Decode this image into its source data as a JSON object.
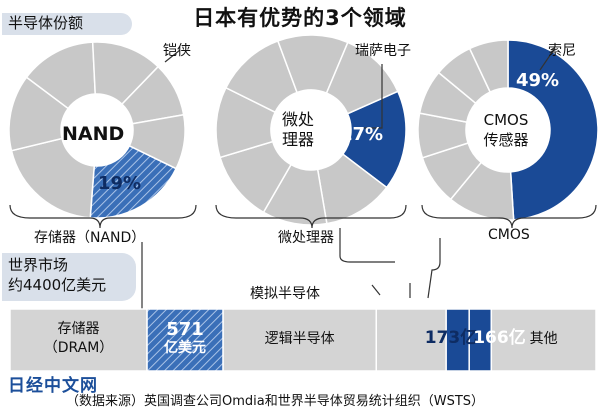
{
  "title": "日本有优势的3个领域",
  "share_tag": "半导体份额",
  "market_tag_line1": "世界市场",
  "market_tag_line2": "约4400亿美元",
  "colors": {
    "japan": "#1a4a96",
    "gray": "#c8c8c8",
    "slice_border": "#ffffff",
    "bar_bg": "#d4d4d4"
  },
  "chart_data": [
    {
      "type": "pie",
      "center_label": "NAND",
      "company": "铠侠",
      "value_label": "19%",
      "category_label": "存储器（NAND）",
      "japan_share": 19,
      "japan_style": "hatched",
      "slices": [
        19,
        20,
        14,
        14,
        13,
        10,
        10
      ]
    },
    {
      "type": "pie",
      "center_label_line1": "微处",
      "center_label_line2": "理器",
      "company": "瑞萨电子",
      "value_label": "17%",
      "category_label": "微处理器",
      "japan_share": 17,
      "japan_style": "solid",
      "slices": [
        17,
        12,
        11,
        12,
        12,
        12,
        12,
        12
      ]
    },
    {
      "type": "pie",
      "center_label_line1": "CMOS",
      "center_label_line2": "传感器",
      "company": "索尼",
      "value_label": "49%",
      "category_label": "CMOS",
      "japan_share": 49,
      "japan_style": "solid",
      "slices": [
        49,
        12,
        9,
        8,
        8,
        7,
        7
      ]
    },
    {
      "type": "bar",
      "subtype": "stacked-horizontal",
      "segments": [
        {
          "label_line1": "存储器",
          "label_line2": "（DRAM）",
          "value": 1029,
          "style": "gray"
        },
        {
          "label_line1": "571",
          "label_line2": "亿美元",
          "value": 571,
          "style": "hatched"
        },
        {
          "label": "逻辑半导体",
          "value": 1150,
          "style": "gray"
        },
        {
          "label": "",
          "value": 525,
          "style": "gray"
        },
        {
          "label": "173亿",
          "value": 173,
          "style": "solid"
        },
        {
          "label": "166亿",
          "value": 166,
          "style": "solid"
        },
        {
          "label": "其他",
          "value": 786,
          "style": "gray"
        }
      ],
      "annotation_analog": "模拟半导体"
    }
  ],
  "footer": {
    "logo": "日经中文网",
    "source": "（数据来源）英国调查公司Omdia和世界半导体贸易统计组织（WSTS）"
  }
}
